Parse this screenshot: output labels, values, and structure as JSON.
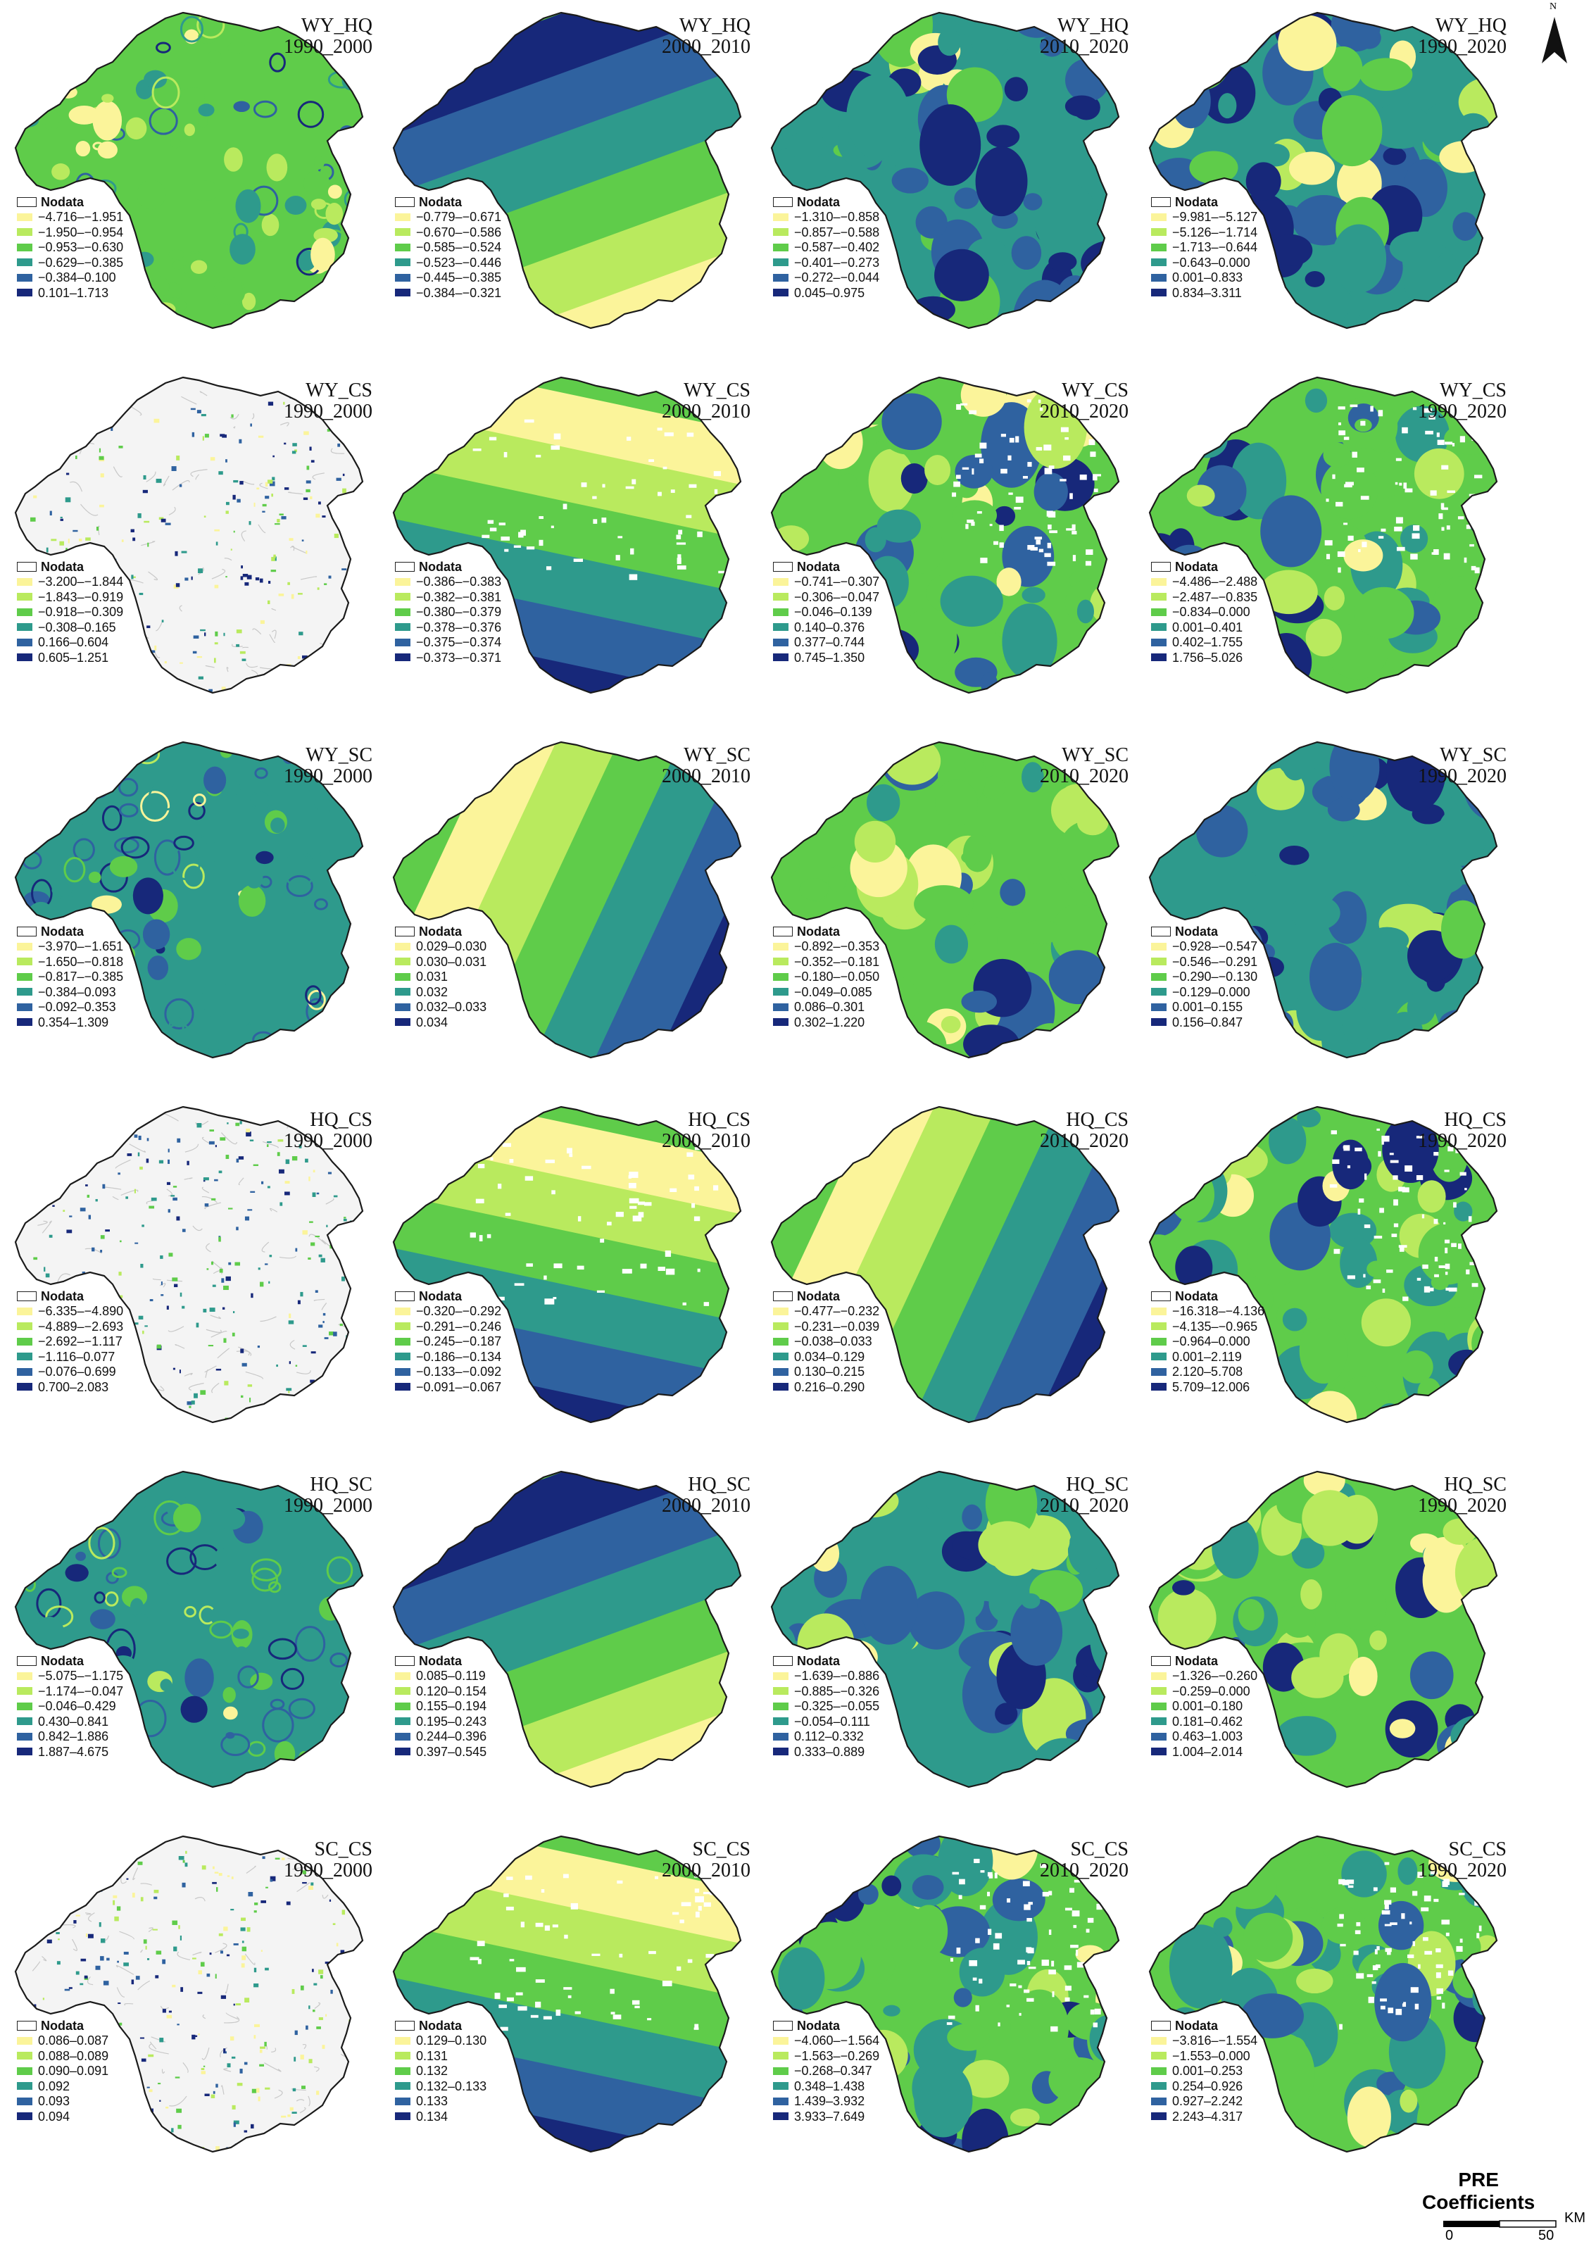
{
  "colors": {
    "c1": "#fbf49a",
    "c2": "#b9ea5e",
    "c3": "#5fcc4a",
    "c4": "#2e9a8c",
    "c5": "#2f62a0",
    "c6": "#17287a",
    "nodata": "#ffffff",
    "outline": "#1a1a1a"
  },
  "nodata_label": "Nodata",
  "panels": [
    {
      "pair": "WY_HQ",
      "period": "1990_2000",
      "pattern": "speckle",
      "scale": "mid",
      "legend": [
        "−4.716–−1.951",
        "−1.950–−0.954",
        "−0.953–−0.630",
        "−0.629–−0.385",
        "−0.384–0.100",
        "0.101–1.713"
      ]
    },
    {
      "pair": "WY_HQ",
      "period": "2000_2010",
      "pattern": "band-diag",
      "scale": "seq",
      "legend": [
        "−0.779–−0.671",
        "−0.670–−0.586",
        "−0.585–−0.524",
        "−0.523–−0.446",
        "−0.445–−0.385",
        "−0.384–−0.321"
      ]
    },
    {
      "pair": "WY_HQ",
      "period": "2010_2020",
      "pattern": "blob",
      "scale": "dark",
      "legend": [
        "−1.310–−0.858",
        "−0.857–−0.588",
        "−0.587–−0.402",
        "−0.401–−0.273",
        "−0.272–−0.044",
        "0.045–0.975"
      ]
    },
    {
      "pair": "WY_HQ",
      "period": "1990_2020",
      "pattern": "blob",
      "scale": "dark",
      "legend": [
        "−9.981–−5.127",
        "−5.126–−1.714",
        "−1.713–−0.644",
        "−0.643–0.000",
        "0.001–0.833",
        "0.834–3.311"
      ]
    },
    {
      "pair": "WY_CS",
      "period": "1990_2000",
      "pattern": "sparse",
      "scale": "seq",
      "legend": [
        "−3.200–−1.844",
        "−1.843–−0.919",
        "−0.918–−0.309",
        "−0.308–0.165",
        "0.166–0.604",
        "0.605–1.251"
      ]
    },
    {
      "pair": "WY_CS",
      "period": "2000_2010",
      "pattern": "band-ns",
      "scale": "seq",
      "legend": [
        "−0.386–−0.383",
        "−0.382–−0.381",
        "−0.380–−0.379",
        "−0.378–−0.376",
        "−0.375–−0.374",
        "−0.373–−0.371"
      ]
    },
    {
      "pair": "WY_CS",
      "period": "2010_2020",
      "pattern": "blob",
      "scale": "mid",
      "legend": [
        "−0.741–−0.307",
        "−0.306–−0.047",
        "−0.046–0.139",
        "0.140–0.376",
        "0.377–0.744",
        "0.745–1.350"
      ]
    },
    {
      "pair": "WY_CS",
      "period": "1990_2020",
      "pattern": "blob",
      "scale": "mid",
      "legend": [
        "−4.486–−2.488",
        "−2.487–−0.835",
        "−0.834–0.000",
        "0.001–0.401",
        "0.402–1.755",
        "1.756–5.026"
      ]
    },
    {
      "pair": "WY_SC",
      "period": "1990_2000",
      "pattern": "speckle",
      "scale": "teal",
      "legend": [
        "−3.970–−1.651",
        "−1.650–−0.818",
        "−0.817–−0.385",
        "−0.384–0.093",
        "−0.092–0.353",
        "0.354–1.309"
      ]
    },
    {
      "pair": "WY_SC",
      "period": "2000_2010",
      "pattern": "band-ew",
      "scale": "seq",
      "legend": [
        "0.029–0.030",
        "0.030–0.031",
        "0.031",
        "0.032",
        "0.032–0.033",
        "0.034"
      ]
    },
    {
      "pair": "WY_SC",
      "period": "2010_2020",
      "pattern": "blob",
      "scale": "mid",
      "legend": [
        "−0.892–−0.353",
        "−0.352–−0.181",
        "−0.180–−0.050",
        "−0.049–0.085",
        "0.086–0.301",
        "0.302–1.220"
      ]
    },
    {
      "pair": "WY_SC",
      "period": "1990_2020",
      "pattern": "blob",
      "scale": "dark",
      "legend": [
        "−0.928–−0.547",
        "−0.546–−0.291",
        "−0.290–−0.130",
        "−0.129–0.000",
        "0.001–0.155",
        "0.156–0.847"
      ]
    },
    {
      "pair": "HQ_CS",
      "period": "1990_2000",
      "pattern": "sparse",
      "scale": "dark",
      "legend": [
        "−6.335–−4.890",
        "−4.889–−2.693",
        "−2.692–−1.117",
        "−1.116–0.077",
        "−0.076–0.699",
        "0.700–2.083"
      ]
    },
    {
      "pair": "HQ_CS",
      "period": "2000_2010",
      "pattern": "band-ns",
      "scale": "seq",
      "legend": [
        "−0.320–−0.292",
        "−0.291–−0.246",
        "−0.245–−0.187",
        "−0.186–−0.134",
        "−0.133–−0.092",
        "−0.091–−0.067"
      ]
    },
    {
      "pair": "HQ_CS",
      "period": "2010_2020",
      "pattern": "band-ew",
      "scale": "seq",
      "legend": [
        "−0.477–−0.232",
        "−0.231–−0.039",
        "−0.038–0.033",
        "0.034–0.129",
        "0.130–0.215",
        "0.216–0.290"
      ]
    },
    {
      "pair": "HQ_CS",
      "period": "1990_2020",
      "pattern": "blob",
      "scale": "mid",
      "legend": [
        "−16.318–−4.136",
        "−4.135–−0.965",
        "−0.964–0.000",
        "0.001–2.119",
        "2.120–5.708",
        "5.709–12.006"
      ]
    },
    {
      "pair": "HQ_SC",
      "period": "1990_2000",
      "pattern": "speckle",
      "scale": "teal",
      "legend": [
        "−5.075–−1.175",
        "−1.174–−0.047",
        "−0.046–0.429",
        "0.430–0.841",
        "0.842–1.886",
        "1.887–4.675"
      ]
    },
    {
      "pair": "HQ_SC",
      "period": "2000_2010",
      "pattern": "band-diag",
      "scale": "seq",
      "legend": [
        "0.085–0.119",
        "0.120–0.154",
        "0.155–0.194",
        "0.195–0.243",
        "0.244–0.396",
        "0.397–0.545"
      ]
    },
    {
      "pair": "HQ_SC",
      "period": "2010_2020",
      "pattern": "blob",
      "scale": "dark",
      "legend": [
        "−1.639–−0.886",
        "−0.885–−0.326",
        "−0.325–−0.055",
        "−0.054–0.111",
        "0.112–0.332",
        "0.333–0.889"
      ]
    },
    {
      "pair": "HQ_SC",
      "period": "1990_2020",
      "pattern": "blob",
      "scale": "light",
      "legend": [
        "−1.326–−0.260",
        "−0.259–0.000",
        "0.001–0.180",
        "0.181–0.462",
        "0.463–1.003",
        "1.004–2.014"
      ]
    },
    {
      "pair": "SC_CS",
      "period": "1990_2000",
      "pattern": "sparse",
      "scale": "seq",
      "legend": [
        "0.086–0.087",
        "0.088–0.089",
        "0.090–0.091",
        "0.092",
        "0.093",
        "0.094"
      ]
    },
    {
      "pair": "SC_CS",
      "period": "2000_2010",
      "pattern": "band-ns",
      "scale": "seq",
      "legend": [
        "0.129–0.130",
        "0.131",
        "0.132",
        "0.132–0.133",
        "0.133",
        "0.134"
      ]
    },
    {
      "pair": "SC_CS",
      "period": "2010_2020",
      "pattern": "blob",
      "scale": "mid",
      "legend": [
        "−4.060–−1.564",
        "−1.563–−0.269",
        "−0.268–0.347",
        "0.348–1.438",
        "1.439–3.932",
        "3.933–7.649"
      ]
    },
    {
      "pair": "SC_CS",
      "period": "1990_2020",
      "pattern": "blob",
      "scale": "mid",
      "legend": [
        "−3.816–−1.554",
        "−1.553–0.000",
        "0.001–0.253",
        "0.254–0.926",
        "0.927–2.242",
        "2.243–4.317"
      ]
    }
  ],
  "footer": {
    "title_line1": "PRE",
    "title_line2": "Coefficients",
    "scale_zero": "0",
    "scale_fifty": "50",
    "scale_unit": "KM"
  },
  "north_label": "N"
}
